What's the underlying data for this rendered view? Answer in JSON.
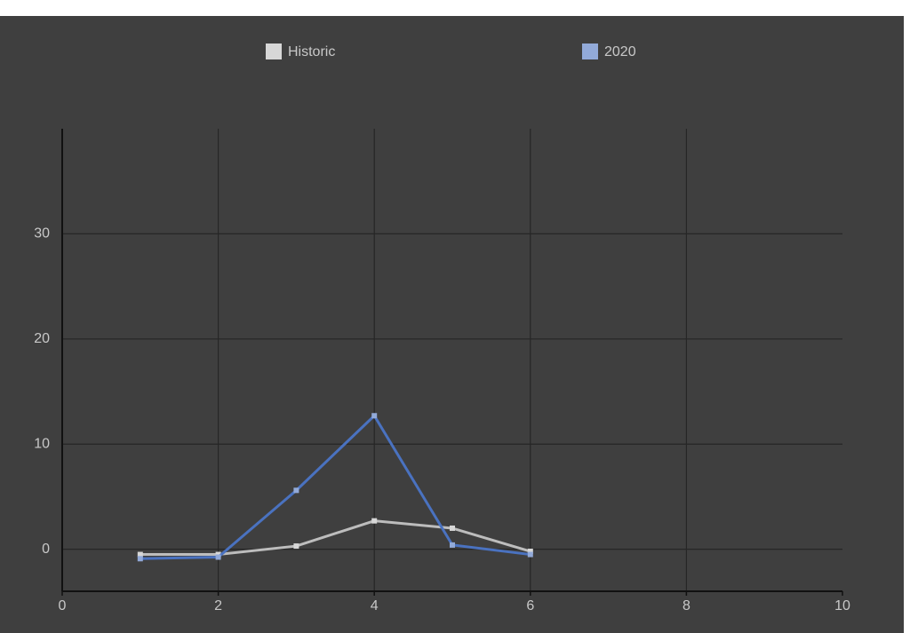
{
  "chart_data": {
    "type": "line",
    "x": [
      1,
      2,
      3,
      4,
      5,
      6
    ],
    "series": [
      {
        "name": "Historic",
        "color": "#bdbdbd",
        "values": [
          -0.5,
          -0.5,
          0.3,
          2.7,
          2.0,
          -0.2
        ]
      },
      {
        "name": "2020",
        "color": "#4a72c0",
        "values": [
          -0.9,
          -0.75,
          5.6,
          12.7,
          0.4,
          -0.5
        ]
      }
    ],
    "xlim": [
      0,
      10
    ],
    "xticks": [
      0,
      2,
      4,
      6,
      8,
      10
    ],
    "ylim": [
      -4,
      40
    ],
    "yticks": [
      0,
      10,
      20,
      30
    ],
    "grid": true,
    "legend": "top"
  }
}
